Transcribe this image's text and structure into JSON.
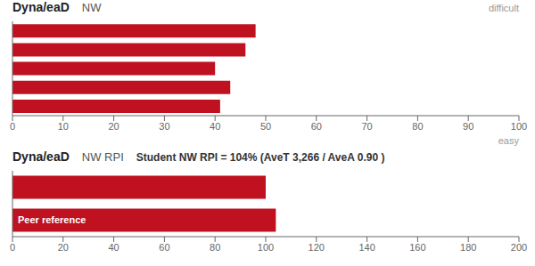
{
  "chart_data": [
    {
      "type": "bar",
      "orientation": "horizontal",
      "title": "Dyna/eaD",
      "subtitle": "NW",
      "annotations": [
        "difficult",
        "easy"
      ],
      "categories": [
        null,
        null,
        null,
        null,
        null
      ],
      "values": [
        41,
        43,
        40,
        46,
        48
      ],
      "color": "#bf1120",
      "xlim": [
        0,
        100
      ],
      "xticks": [
        0,
        10,
        20,
        30,
        40,
        50,
        60,
        70,
        80,
        90,
        100
      ],
      "grid": false
    },
    {
      "type": "bar",
      "orientation": "horizontal",
      "title": "Dyna/eaD",
      "subtitle": "NW RPI",
      "annotations": [
        "Student NW RPI = 104% (AveT 3,266 / AveA 0.90 )",
        "Peer reference"
      ],
      "categories": [
        null,
        null
      ],
      "values": [
        104,
        100
      ],
      "color": "#bf1120",
      "xlim": [
        0,
        200
      ],
      "xticks": [
        0,
        20,
        40,
        60,
        80,
        100,
        120,
        140,
        160,
        180,
        200
      ],
      "grid": false
    }
  ]
}
